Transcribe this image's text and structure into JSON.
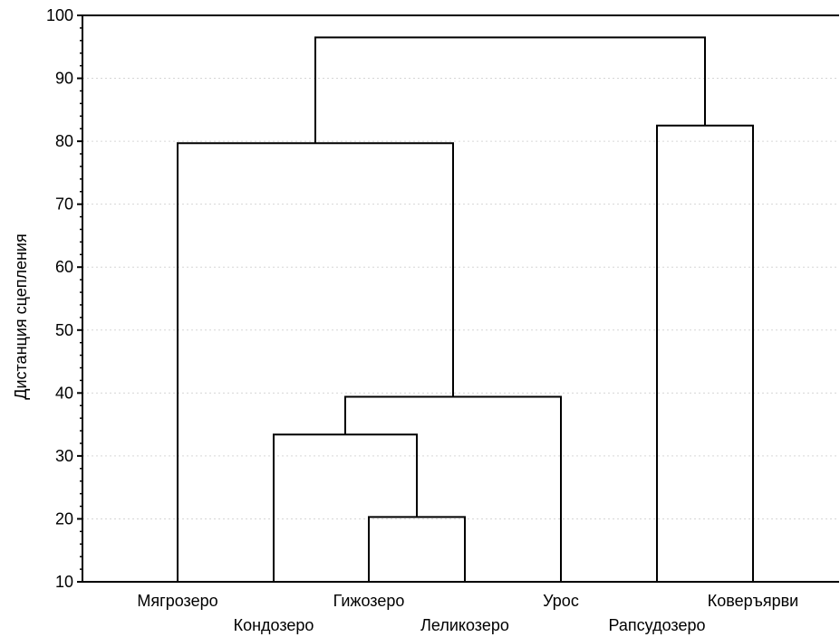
{
  "chart_data": {
    "type": "dendrogram",
    "title": "",
    "xlabel": "",
    "ylabel": "Дистанция сцепления",
    "ylim": [
      10,
      100
    ],
    "yticks": [
      10,
      20,
      30,
      40,
      50,
      60,
      70,
      80,
      90,
      100
    ],
    "grid": true,
    "leaves": [
      "Мягрозеро",
      "Кондозеро",
      "Гижозеро",
      "Леликозеро",
      "Урос",
      "Рапсудозеро",
      "Коверъярви"
    ],
    "merges": [
      {
        "left": 3,
        "right": 4,
        "height": 20.3
      },
      {
        "left": 2,
        "right": 8,
        "height": 33.4
      },
      {
        "left": 9,
        "right": 5,
        "height": 39.4
      },
      {
        "left": 1,
        "right": 10,
        "height": 79.7
      },
      {
        "left": 6,
        "right": 7,
        "height": 82.5
      },
      {
        "left": 11,
        "right": 12,
        "height": 96.5
      }
    ]
  }
}
